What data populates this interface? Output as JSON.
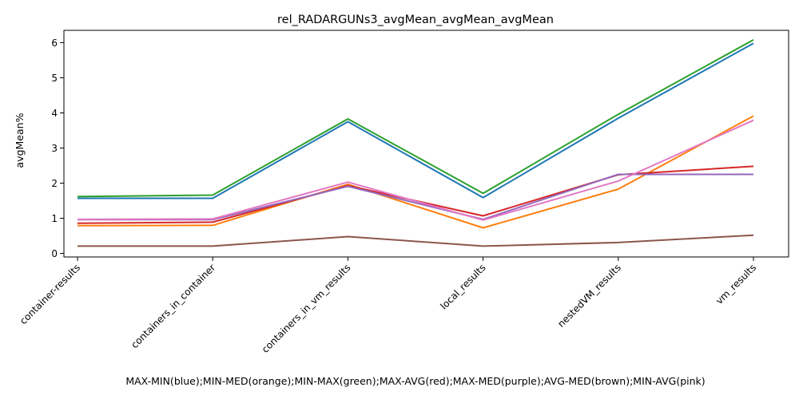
{
  "chart_data": {
    "type": "line",
    "title": "rel_RADARGUNs3_avgMean_avgMean_avgMean",
    "xlabel": "MAX-MIN(blue);MIN-MED(orange);MIN-MAX(green);MAX-AVG(red);MAX-MED(purple);AVG-MED(brown);MIN-AVG(pink)",
    "ylabel": "avgMean%",
    "categories": [
      "container-results",
      "containers_in_container",
      "containers_in_vm_results",
      "local_results",
      "nestedVM_results",
      "vm_results"
    ],
    "ylim": [
      -0.1,
      6.35
    ],
    "yticks": [
      "0",
      "1",
      "2",
      "3",
      "4",
      "5",
      "6"
    ],
    "grid": false,
    "legend": "none",
    "series": [
      {
        "color": "#1f77b4",
        "values": [
          1.57,
          1.57,
          3.75,
          1.59,
          3.85,
          5.98
        ]
      },
      {
        "color": "#ff7f0e",
        "values": [
          0.79,
          0.8,
          1.97,
          0.73,
          1.83,
          3.91
        ]
      },
      {
        "color": "#2ca02c",
        "values": [
          1.62,
          1.66,
          3.83,
          1.71,
          3.96,
          6.08
        ]
      },
      {
        "color": "#d62728",
        "values": [
          0.86,
          0.89,
          1.93,
          1.07,
          2.24,
          2.48
        ]
      },
      {
        "color": "#9467bd",
        "values": [
          0.96,
          0.96,
          1.91,
          0.97,
          2.25,
          2.25
        ]
      },
      {
        "color": "#8c564b",
        "values": [
          0.21,
          0.21,
          0.48,
          0.21,
          0.31,
          0.52
        ]
      },
      {
        "color": "#e377c2",
        "values": [
          0.97,
          0.98,
          2.03,
          0.95,
          2.06,
          3.79
        ]
      }
    ]
  }
}
